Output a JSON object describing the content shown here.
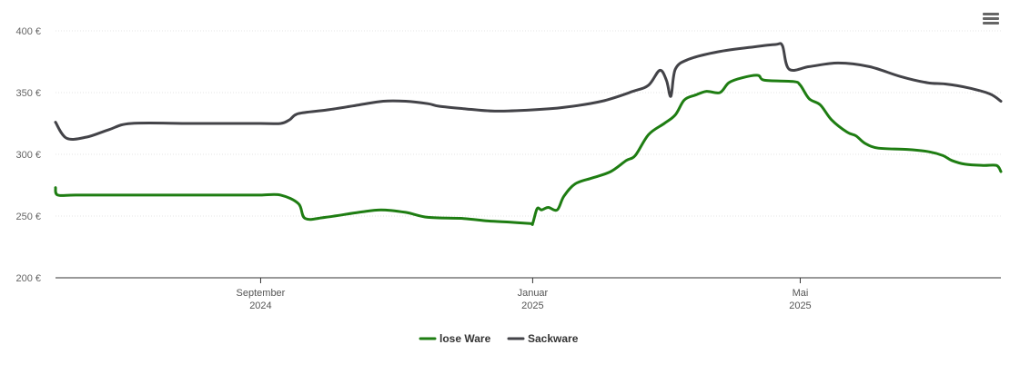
{
  "chart_data": {
    "type": "line",
    "x_start": "2024-06",
    "x_end": "2025-06",
    "y_unit": "€",
    "ylim": [
      200,
      400
    ],
    "yticks": [
      "400 €",
      "350 €",
      "300 €",
      "250 €",
      "200 €"
    ],
    "yvalues": [
      400,
      350,
      300,
      250,
      200
    ],
    "grid": true,
    "legend_position": "bottom-center",
    "xticks": [
      {
        "month": "September",
        "year": "2024",
        "date": "2024-09-01"
      },
      {
        "month": "Januar",
        "year": "2025",
        "date": "2025-01-01"
      },
      {
        "month": "Mai",
        "year": "2025",
        "date": "2025-05-01"
      }
    ],
    "series": [
      {
        "name": "lose Ware",
        "color": "#1e7d12",
        "points": [
          [
            "2024-06-01",
            273
          ],
          [
            "2024-06-02",
            267
          ],
          [
            "2024-06-10",
            267
          ],
          [
            "2024-07-01",
            267
          ],
          [
            "2024-08-01",
            267
          ],
          [
            "2024-08-22",
            267
          ],
          [
            "2024-09-01",
            267
          ],
          [
            "2024-09-10",
            267
          ],
          [
            "2024-09-18",
            260
          ],
          [
            "2024-09-21",
            248
          ],
          [
            "2024-09-30",
            249
          ],
          [
            "2024-10-15",
            253
          ],
          [
            "2024-10-25",
            255
          ],
          [
            "2024-11-05",
            253
          ],
          [
            "2024-11-15",
            249
          ],
          [
            "2024-12-01",
            248
          ],
          [
            "2024-12-12",
            246
          ],
          [
            "2024-12-22",
            245
          ],
          [
            "2024-12-31",
            244
          ],
          [
            "2025-01-01",
            244
          ],
          [
            "2025-01-03",
            256
          ],
          [
            "2025-01-05",
            255
          ],
          [
            "2025-01-08",
            257
          ],
          [
            "2025-01-12",
            255
          ],
          [
            "2025-01-15",
            266
          ],
          [
            "2025-01-20",
            276
          ],
          [
            "2025-01-28",
            281
          ],
          [
            "2025-02-05",
            286
          ],
          [
            "2025-02-12",
            295
          ],
          [
            "2025-02-16",
            299
          ],
          [
            "2025-02-22",
            316
          ],
          [
            "2025-03-01",
            325
          ],
          [
            "2025-03-06",
            332
          ],
          [
            "2025-03-10",
            344
          ],
          [
            "2025-03-15",
            348
          ],
          [
            "2025-03-20",
            351
          ],
          [
            "2025-03-26",
            350
          ],
          [
            "2025-03-30",
            358
          ],
          [
            "2025-04-05",
            362
          ],
          [
            "2025-04-12",
            364
          ],
          [
            "2025-04-15",
            360
          ],
          [
            "2025-04-28",
            359
          ],
          [
            "2025-05-01",
            356
          ],
          [
            "2025-05-05",
            345
          ],
          [
            "2025-05-10",
            340
          ],
          [
            "2025-05-15",
            328
          ],
          [
            "2025-05-22",
            318
          ],
          [
            "2025-05-26",
            315
          ],
          [
            "2025-05-30",
            309
          ],
          [
            "2025-06-05",
            305
          ],
          [
            "2025-06-18",
            304
          ],
          [
            "2025-06-28",
            302
          ],
          [
            "2025-07-04",
            299
          ],
          [
            "2025-07-08",
            295
          ],
          [
            "2025-07-14",
            292
          ],
          [
            "2025-07-22",
            291
          ],
          [
            "2025-07-28",
            291
          ],
          [
            "2025-07-30",
            286
          ]
        ]
      },
      {
        "name": "Sackware",
        "color": "#434348",
        "points": [
          [
            "2024-06-01",
            326
          ],
          [
            "2024-06-06",
            313
          ],
          [
            "2024-06-15",
            314
          ],
          [
            "2024-06-25",
            320
          ],
          [
            "2024-07-05",
            325
          ],
          [
            "2024-08-01",
            325
          ],
          [
            "2024-09-01",
            325
          ],
          [
            "2024-09-10",
            325
          ],
          [
            "2024-09-14",
            328
          ],
          [
            "2024-09-18",
            333
          ],
          [
            "2024-10-01",
            336
          ],
          [
            "2024-10-15",
            340
          ],
          [
            "2024-10-26",
            343
          ],
          [
            "2024-11-05",
            343
          ],
          [
            "2024-11-15",
            341
          ],
          [
            "2024-11-20",
            339
          ],
          [
            "2024-12-01",
            337
          ],
          [
            "2024-12-15",
            335
          ],
          [
            "2025-01-01",
            336
          ],
          [
            "2025-01-15",
            338
          ],
          [
            "2025-02-01",
            343
          ],
          [
            "2025-02-15",
            351
          ],
          [
            "2025-02-22",
            356
          ],
          [
            "2025-02-27",
            368
          ],
          [
            "2025-03-02",
            360
          ],
          [
            "2025-03-04",
            347
          ],
          [
            "2025-03-06",
            369
          ],
          [
            "2025-03-12",
            377
          ],
          [
            "2025-03-25",
            383
          ],
          [
            "2025-04-10",
            387
          ],
          [
            "2025-04-20",
            389
          ],
          [
            "2025-04-23",
            388
          ],
          [
            "2025-04-26",
            369
          ],
          [
            "2025-05-05",
            371
          ],
          [
            "2025-05-18",
            374
          ],
          [
            "2025-06-01",
            371
          ],
          [
            "2025-06-15",
            363
          ],
          [
            "2025-06-27",
            358
          ],
          [
            "2025-07-05",
            357
          ],
          [
            "2025-07-15",
            354
          ],
          [
            "2025-07-25",
            349
          ],
          [
            "2025-07-30",
            343
          ]
        ]
      }
    ]
  }
}
